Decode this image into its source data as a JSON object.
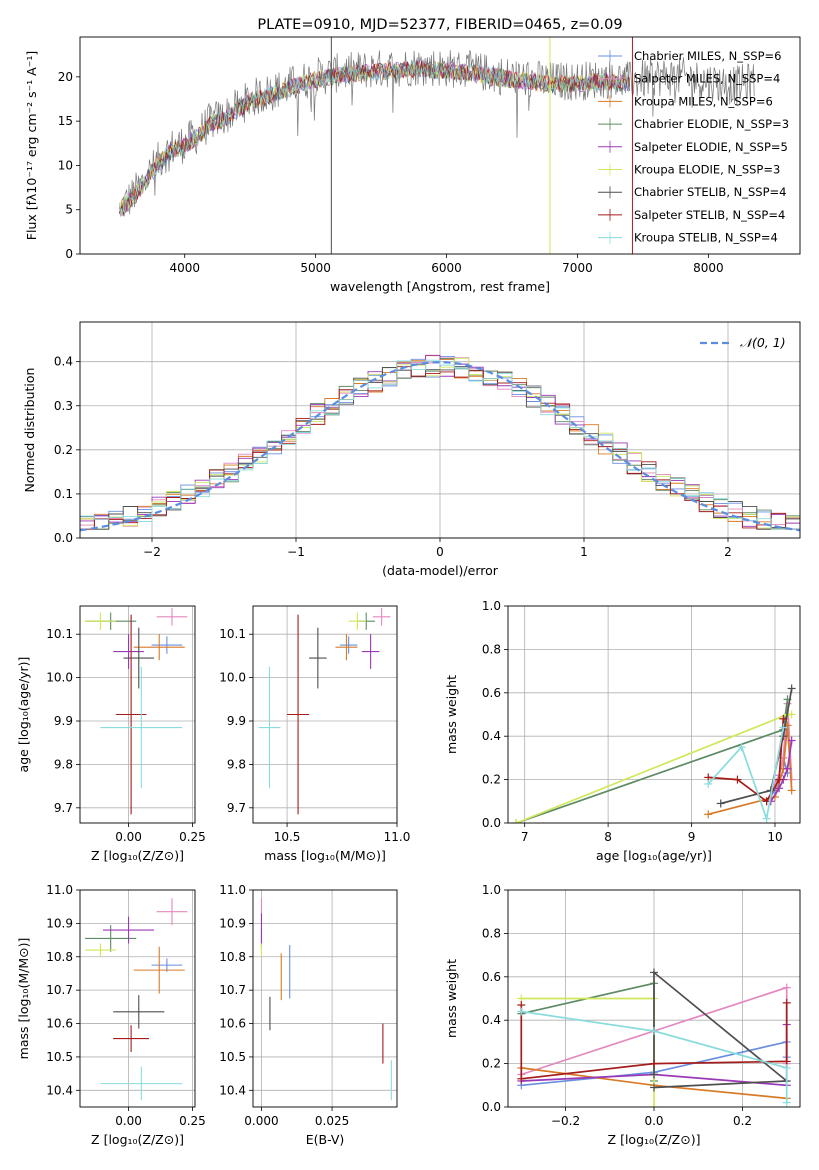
{
  "colors": {
    "Chabrier MILES": "#6a8fe0",
    "Salpeter MILES": "#e487bf",
    "Kroupa MILES": "#d97a26",
    "Chabrier ELODIE": "#5d8b63",
    "Salpeter ELODIE": "#9a39b6",
    "Kroupa ELODIE": "#cfe85a",
    "Chabrier STELIB": "#4f4f4f",
    "Salpeter STELIB": "#a61b1b",
    "Kroupa STELIB": "#8adcdc"
  },
  "chart_data": [
    {
      "id": "spectrum",
      "type": "line",
      "title": "PLATE=0910, MJD=52377, FIBERID=0465, z=0.09",
      "xlabel": "wavelength [Angstrom, rest frame]",
      "ylabel": "Flux [fλ10⁻¹⁷ erg cm⁻² s⁻¹ A⁻¹]",
      "xlim": [
        3200,
        8700
      ],
      "ylim": [
        0,
        24.5
      ],
      "xticks": [
        4000,
        5000,
        6000,
        7000,
        8000
      ],
      "yticks": [
        0,
        5,
        10,
        15,
        20
      ],
      "grid": false,
      "legend_position": "top-right",
      "legend": [
        "Chabrier MILES, N_SSP=6",
        "Salpeter MILES, N_SSP=4",
        "Kroupa MILES, N_SSP=6",
        "Chabrier ELODIE, N_SSP=3",
        "Salpeter ELODIE, N_SSP=5",
        "Kroupa ELODIE, N_SSP=3",
        "Chabrier STELIB, N_SSP=4",
        "Salpeter STELIB, N_SSP=4",
        "Kroupa STELIB, N_SSP=4"
      ],
      "continuum": {
        "x": [
          3520,
          3600,
          3700,
          3800,
          3900,
          4000,
          4100,
          4200,
          4300,
          4400,
          4500,
          4600,
          4700,
          4800,
          4900,
          5000,
          5200,
          5400,
          5600,
          5800,
          6000,
          6200,
          6400,
          6600,
          6800,
          7000,
          7200,
          7400,
          7600,
          7800,
          8000,
          8200,
          8350
        ],
        "y": [
          5.5,
          6.5,
          8.5,
          10.5,
          12,
          12.5,
          13.5,
          15,
          15.5,
          16.5,
          17.5,
          18,
          18.5,
          19,
          19.5,
          20,
          20.5,
          20.8,
          21,
          21.2,
          21,
          20.7,
          20.2,
          19.8,
          19.5,
          19.5,
          19.8,
          19.5,
          20,
          20,
          19.5,
          19,
          19.5
        ]
      },
      "model_x_range": [
        3500,
        7400
      ],
      "spikes": [
        {
          "x": 5120,
          "y_top": 24.5,
          "series": "Chabrier STELIB"
        },
        {
          "x": 6790,
          "y_top": 24.5,
          "series": "Kroupa ELODIE"
        },
        {
          "x": 7420,
          "y_top": 24.5,
          "series": "Salpeter STELIB"
        }
      ]
    },
    {
      "id": "residuals",
      "type": "step",
      "xlabel": "(data-model)/error",
      "ylabel": "Normed distribution",
      "xlim": [
        -2.5,
        2.5
      ],
      "ylim": [
        0,
        0.49
      ],
      "xticks": [
        -2,
        -1,
        0,
        1,
        2
      ],
      "xtick_labels": [
        "−2",
        "−1",
        "0",
        "1",
        "2"
      ],
      "yticks": [
        0,
        0.1,
        0.2,
        0.3,
        0.4
      ],
      "ytick_labels": [
        "0.0",
        "0.1",
        "0.2",
        "0.3",
        "0.4"
      ],
      "grid": true,
      "legend_position": "top-right",
      "legend": [
        "𝒩(0, 1)"
      ],
      "bin_width": 0.1,
      "reference_curve": "normal(0,1)"
    },
    {
      "id": "age_vs_Z",
      "type": "errorbar",
      "xlabel": "Z [log₁₀(Z/Z⊙)]",
      "ylabel": "age  [log₁₀(age/yr)]",
      "xlim": [
        -0.19,
        0.26
      ],
      "ylim": [
        9.665,
        10.165
      ],
      "xticks": [
        0.0,
        0.25
      ],
      "xtick_labels": [
        "0.00",
        "0.25"
      ],
      "yticks": [
        9.7,
        9.8,
        9.9,
        10.0,
        10.1
      ],
      "ytick_labels": [
        "9.7",
        "9.8",
        "9.9",
        "10.0",
        "10.1"
      ],
      "grid": true,
      "points": [
        {
          "series": "Chabrier MILES",
          "x": 0.15,
          "y": 10.075,
          "xerr": 0.06,
          "yerr": 0.02
        },
        {
          "series": "Salpeter MILES",
          "x": 0.17,
          "y": 10.14,
          "xerr": 0.06,
          "yerr": 0.02
        },
        {
          "series": "Kroupa MILES",
          "x": 0.12,
          "y": 10.07,
          "xerr": 0.1,
          "yerr": 0.03
        },
        {
          "series": "Chabrier ELODIE",
          "x": -0.07,
          "y": 10.13,
          "xerr": 0.1,
          "yerr": 0.02
        },
        {
          "series": "Salpeter ELODIE",
          "x": 0.0,
          "y": 10.06,
          "xerr": 0.06,
          "yerr": 0.04
        },
        {
          "series": "Kroupa ELODIE",
          "x": -0.11,
          "y": 10.13,
          "xerr": 0.06,
          "yerr": 0.02
        },
        {
          "series": "Chabrier STELIB",
          "x": 0.04,
          "y": 10.045,
          "xerr": 0.06,
          "yerr": 0.07
        },
        {
          "series": "Salpeter STELIB",
          "x": 0.01,
          "y": 9.915,
          "xerr": 0.06,
          "yerr": 0.23
        },
        {
          "series": "Kroupa STELIB",
          "x": 0.05,
          "y": 9.885,
          "xerr": 0.16,
          "yerr": 0.14
        }
      ]
    },
    {
      "id": "age_vs_mass",
      "type": "errorbar",
      "xlabel": "mass [log₁₀(M/M⊙)]",
      "ylabel": "",
      "xlim": [
        10.345,
        11.0
      ],
      "ylim": [
        9.665,
        10.165
      ],
      "xticks": [
        10.5,
        11.0
      ],
      "xtick_labels": [
        "10.5",
        "11.0"
      ],
      "yticks": [
        9.7,
        9.8,
        9.9,
        10.0,
        10.1
      ],
      "ytick_labels": [
        "9.7",
        "9.8",
        "9.9",
        "10.0",
        "10.1"
      ],
      "grid": true,
      "points": [
        {
          "series": "Chabrier MILES",
          "x": 10.78,
          "y": 10.075,
          "xerr": 0.04,
          "yerr": 0.02
        },
        {
          "series": "Salpeter MILES",
          "x": 10.93,
          "y": 10.14,
          "xerr": 0.04,
          "yerr": 0.02
        },
        {
          "series": "Kroupa MILES",
          "x": 10.77,
          "y": 10.07,
          "xerr": 0.05,
          "yerr": 0.03
        },
        {
          "series": "Chabrier ELODIE",
          "x": 10.86,
          "y": 10.13,
          "xerr": 0.04,
          "yerr": 0.02
        },
        {
          "series": "Salpeter ELODIE",
          "x": 10.88,
          "y": 10.06,
          "xerr": 0.04,
          "yerr": 0.04
        },
        {
          "series": "Kroupa ELODIE",
          "x": 10.82,
          "y": 10.13,
          "xerr": 0.04,
          "yerr": 0.02
        },
        {
          "series": "Chabrier STELIB",
          "x": 10.64,
          "y": 10.045,
          "xerr": 0.04,
          "yerr": 0.07
        },
        {
          "series": "Salpeter STELIB",
          "x": 10.55,
          "y": 9.915,
          "xerr": 0.05,
          "yerr": 0.23
        },
        {
          "series": "Kroupa STELIB",
          "x": 10.42,
          "y": 9.885,
          "xerr": 0.05,
          "yerr": 0.14
        }
      ]
    },
    {
      "id": "mass_weight_vs_age",
      "type": "line",
      "xlabel": "age  [log₁₀(age/yr)]",
      "ylabel": "mass weight",
      "xlim": [
        6.8,
        10.3
      ],
      "ylim": [
        0.0,
        1.0
      ],
      "xticks": [
        7,
        8,
        9,
        10
      ],
      "xtick_labels": [
        "7",
        "8",
        "9",
        "10"
      ],
      "yticks": [
        0.0,
        0.2,
        0.4,
        0.6,
        0.8,
        1.0
      ],
      "ytick_labels": [
        "0.0",
        "0.2",
        "0.4",
        "0.6",
        "0.8",
        "1.0"
      ],
      "grid": true,
      "series": [
        {
          "name": "Chabrier MILES",
          "x": [
            9.9,
            10.0,
            10.05,
            10.1,
            10.15
          ],
          "y": [
            0.1,
            0.15,
            0.22,
            0.3,
            0.23
          ]
        },
        {
          "name": "Salpeter MILES",
          "x": [
            9.95,
            10.05,
            10.1,
            10.15,
            10.2
          ],
          "y": [
            0.15,
            0.22,
            0.3,
            0.55,
            0.2
          ]
        },
        {
          "name": "Kroupa MILES",
          "x": [
            9.2,
            10.0,
            10.1,
            10.15,
            10.2
          ],
          "y": [
            0.04,
            0.12,
            0.25,
            0.45,
            0.15
          ]
        },
        {
          "name": "Chabrier ELODIE",
          "x": [
            6.9,
            10.1,
            10.15
          ],
          "y": [
            0.0,
            0.43,
            0.57
          ]
        },
        {
          "name": "Salpeter ELODIE",
          "x": [
            9.95,
            10.05,
            10.1,
            10.15,
            10.2
          ],
          "y": [
            0.1,
            0.16,
            0.2,
            0.25,
            0.38
          ]
        },
        {
          "name": "Kroupa ELODIE",
          "x": [
            6.9,
            10.15,
            10.2
          ],
          "y": [
            0.0,
            0.5,
            0.5
          ]
        },
        {
          "name": "Chabrier STELIB",
          "x": [
            9.35,
            9.95,
            10.1,
            10.2
          ],
          "y": [
            0.09,
            0.15,
            0.4,
            0.62
          ]
        },
        {
          "name": "Salpeter STELIB",
          "x": [
            9.2,
            9.55,
            9.9,
            10.05,
            10.1
          ],
          "y": [
            0.21,
            0.2,
            0.1,
            0.2,
            0.48
          ]
        },
        {
          "name": "Kroupa STELIB",
          "x": [
            9.2,
            9.6,
            9.9,
            10.1
          ],
          "y": [
            0.18,
            0.35,
            0.02,
            0.44
          ]
        }
      ]
    },
    {
      "id": "mass_vs_Z",
      "type": "errorbar",
      "xlabel": "Z [log₁₀(Z/Z⊙)]",
      "ylabel": "mass [log₁₀(M/M⊙)]",
      "xlim": [
        -0.19,
        0.26
      ],
      "ylim": [
        10.35,
        11.0
      ],
      "xticks": [
        0.0,
        0.25
      ],
      "xtick_labels": [
        "0.00",
        "0.25"
      ],
      "yticks": [
        10.4,
        10.5,
        10.6,
        10.7,
        10.8,
        10.9,
        11.0
      ],
      "ytick_labels": [
        "10.4",
        "10.5",
        "10.6",
        "10.7",
        "10.8",
        "10.9",
        "11.0"
      ],
      "grid": true,
      "points": [
        {
          "series": "Chabrier MILES",
          "x": 0.15,
          "y": 10.775,
          "xerr": 0.06,
          "yerr": 0.02
        },
        {
          "series": "Salpeter MILES",
          "x": 0.17,
          "y": 10.935,
          "xerr": 0.06,
          "yerr": 0.04
        },
        {
          "series": "Kroupa MILES",
          "x": 0.12,
          "y": 10.76,
          "xerr": 0.1,
          "yerr": 0.07
        },
        {
          "series": "Chabrier ELODIE",
          "x": -0.07,
          "y": 10.855,
          "xerr": 0.1,
          "yerr": 0.04
        },
        {
          "series": "Salpeter ELODIE",
          "x": 0.0,
          "y": 10.88,
          "xerr": 0.1,
          "yerr": 0.04
        },
        {
          "series": "Kroupa ELODIE",
          "x": -0.11,
          "y": 10.82,
          "xerr": 0.06,
          "yerr": 0.02
        },
        {
          "series": "Chabrier STELIB",
          "x": 0.04,
          "y": 10.635,
          "xerr": 0.1,
          "yerr": 0.05
        },
        {
          "series": "Salpeter STELIB",
          "x": 0.01,
          "y": 10.555,
          "xerr": 0.07,
          "yerr": 0.04
        },
        {
          "series": "Kroupa STELIB",
          "x": 0.05,
          "y": 10.42,
          "xerr": 0.16,
          "yerr": 0.05
        }
      ]
    },
    {
      "id": "mass_vs_ebv",
      "type": "errorbar",
      "xlabel": "E(B-V)",
      "ylabel": "",
      "xlim": [
        -0.003,
        0.048
      ],
      "ylim": [
        10.35,
        11.0
      ],
      "xticks": [
        0.0,
        0.025
      ],
      "xtick_labels": [
        "0.000",
        "0.025"
      ],
      "yticks": [
        10.4,
        10.5,
        10.6,
        10.7,
        10.8,
        10.9,
        11.0
      ],
      "ytick_labels": [
        "10.4",
        "10.5",
        "10.6",
        "10.7",
        "10.8",
        "10.9",
        "11.0"
      ],
      "grid": true,
      "points": [
        {
          "series": "Chabrier MILES",
          "x": 0.01,
          "y": 10.755,
          "xerr": 0.0,
          "yerr": 0.08
        },
        {
          "series": "Salpeter MILES",
          "x": 0.0,
          "y": 10.935,
          "xerr": 0.0,
          "yerr": 0.04
        },
        {
          "series": "Kroupa MILES",
          "x": 0.007,
          "y": 10.74,
          "xerr": 0.0,
          "yerr": 0.07
        },
        {
          "series": "Chabrier ELODIE",
          "x": 0.0,
          "y": 10.855,
          "xerr": 0.0,
          "yerr": 0.03
        },
        {
          "series": "Salpeter ELODIE",
          "x": 0.0,
          "y": 10.88,
          "xerr": 0.0,
          "yerr": 0.05
        },
        {
          "series": "Kroupa ELODIE",
          "x": 0.0,
          "y": 10.82,
          "xerr": 0.0,
          "yerr": 0.02
        },
        {
          "series": "Chabrier STELIB",
          "x": 0.003,
          "y": 10.63,
          "xerr": 0.0,
          "yerr": 0.05
        },
        {
          "series": "Salpeter STELIB",
          "x": 0.043,
          "y": 10.54,
          "xerr": 0.0,
          "yerr": 0.06
        },
        {
          "series": "Kroupa STELIB",
          "x": 0.046,
          "y": 10.43,
          "xerr": 0.0,
          "yerr": 0.06
        }
      ]
    },
    {
      "id": "mass_weight_vs_Z",
      "type": "line",
      "xlabel": "Z [log₁₀(Z/Z⊙)]",
      "ylabel": "mass weight",
      "xlim": [
        -0.33,
        0.33
      ],
      "ylim": [
        0.0,
        1.0
      ],
      "xticks": [
        -0.2,
        0.0,
        0.2
      ],
      "xtick_labels": [
        "−0.2",
        "0.0",
        "0.2"
      ],
      "yticks": [
        0.0,
        0.2,
        0.4,
        0.6,
        0.8,
        1.0
      ],
      "ytick_labels": [
        "0.0",
        "0.2",
        "0.4",
        "0.6",
        "0.8",
        "1.0"
      ],
      "grid": true,
      "series": [
        {
          "name": "Chabrier MILES",
          "x": [
            -0.3,
            0.0,
            0.3,
            0.3
          ],
          "y": [
            0.1,
            0.16,
            0.3,
            0.23
          ]
        },
        {
          "name": "Salpeter MILES",
          "x": [
            -0.3,
            0.0,
            0.3,
            0.3
          ],
          "y": [
            0.15,
            0.35,
            0.55,
            0.2
          ]
        },
        {
          "name": "Kroupa MILES",
          "x": [
            -0.3,
            0.0,
            0.3
          ],
          "y": [
            0.18,
            0.1,
            0.04
          ]
        },
        {
          "name": "Chabrier ELODIE",
          "x": [
            -0.3,
            0.0,
            0.0
          ],
          "y": [
            0.43,
            0.57,
            0.12
          ]
        },
        {
          "name": "Salpeter ELODIE",
          "x": [
            -0.3,
            0.0,
            0.3,
            0.3
          ],
          "y": [
            0.12,
            0.15,
            0.1,
            0.38
          ]
        },
        {
          "name": "Kroupa ELODIE",
          "x": [
            -0.3,
            0.0,
            0.0
          ],
          "y": [
            0.5,
            0.5,
            0.0
          ]
        },
        {
          "name": "Chabrier STELIB",
          "x": [
            0.0,
            0.3,
            0.0,
            0.0
          ],
          "y": [
            0.09,
            0.12,
            0.62,
            0.15
          ]
        },
        {
          "name": "Salpeter STELIB",
          "x": [
            -0.3,
            -0.3,
            0.0,
            0.3,
            0.3
          ],
          "y": [
            0.47,
            0.13,
            0.2,
            0.21,
            0.48
          ]
        },
        {
          "name": "Kroupa STELIB",
          "x": [
            -0.3,
            0.0,
            0.3,
            0.3
          ],
          "y": [
            0.44,
            0.35,
            0.18,
            0.02
          ]
        }
      ]
    }
  ]
}
